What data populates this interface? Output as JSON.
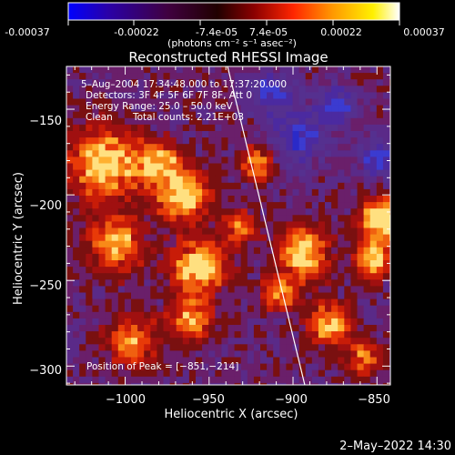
{
  "colorbar": {
    "tick_labels": [
      "-0.00037",
      "-0.00022",
      "-7.4e-05",
      "7.4e-05",
      "0.00022",
      "0.00037"
    ],
    "units_label": "(photons cm⁻² s⁻¹ asec⁻²)",
    "colors": [
      "#0000ff",
      "#2a00a8",
      "#400040",
      "#200000",
      "#8a0000",
      "#ff2600",
      "#ff9a00",
      "#fff000",
      "#ffffff"
    ]
  },
  "plot": {
    "title": "Reconstructed RHESSI Image",
    "xlabel": "Heliocentric X (arcsec)",
    "ylabel": "Heliocentric Y (arcsec)",
    "xlim": [
      -1035,
      -842
    ],
    "ylim": [
      -311,
      -125
    ],
    "x_ticks": [
      -1000,
      -950,
      -900,
      -850
    ],
    "x_tick_labels": [
      "−1000",
      "−950",
      "−900",
      "−850"
    ],
    "y_ticks": [
      -150,
      -200,
      -250,
      -300
    ],
    "y_tick_labels": [
      "−150",
      "−200",
      "−250",
      "−300"
    ],
    "limb_line": [
      [
        -939,
        -125
      ],
      [
        -893,
        -311
      ]
    ],
    "line_color": "#ffffff"
  },
  "info": {
    "line1": "5–Aug–2004 17:34:48.000 to 17:37:20.000",
    "line2": "Detectors: 3F 4F 5F 6F 7F 8F, Att 0",
    "line3": "Energy Range: 25.0 – 50.0 keV",
    "line4_method": "Clean",
    "line4_counts": "Total counts: 2.21E+03"
  },
  "peak": {
    "label": "Position of Peak = [−851,−214]"
  },
  "footer": {
    "timestamp": "2–May–2022 14:30"
  }
}
